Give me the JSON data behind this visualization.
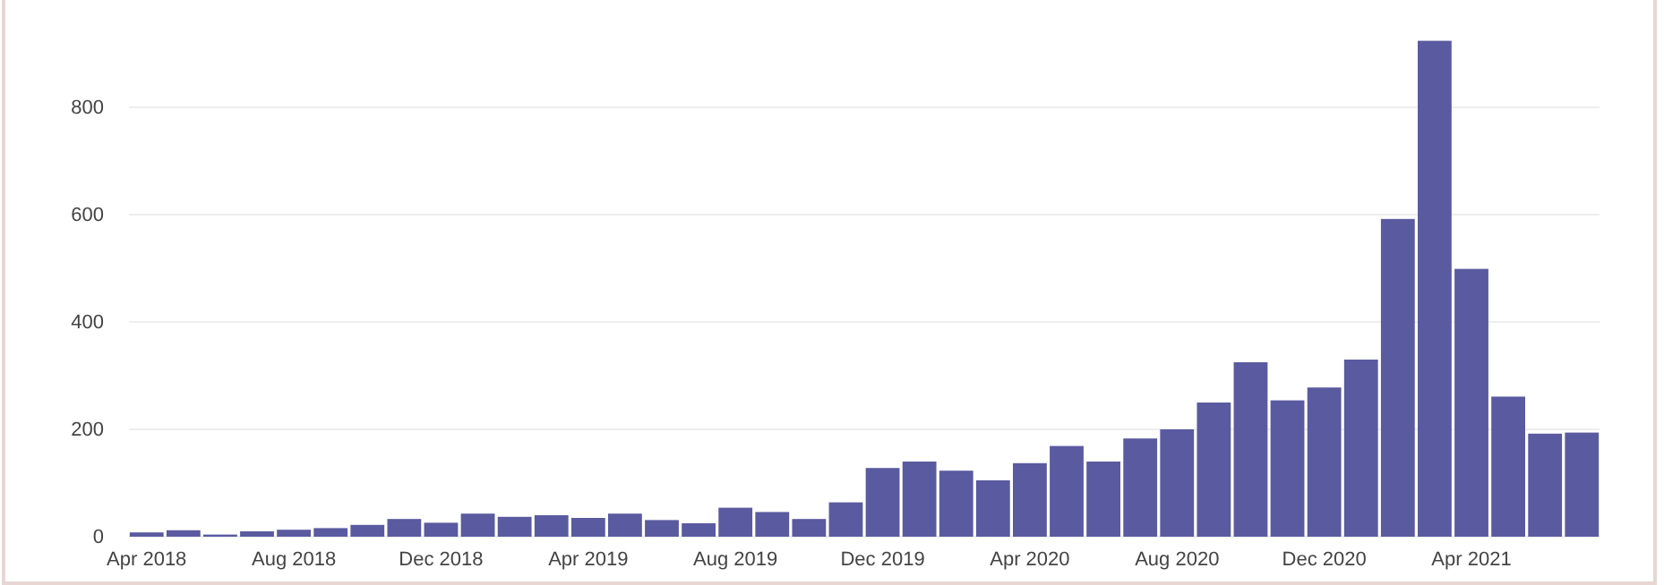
{
  "chart_data": {
    "type": "bar",
    "categories": [
      "Apr 2018",
      null,
      null,
      null,
      "Aug 2018",
      null,
      null,
      null,
      "Dec 2018",
      null,
      null,
      null,
      "Apr 2019",
      null,
      null,
      null,
      "Aug 2019",
      null,
      null,
      null,
      "Dec 2019",
      null,
      null,
      null,
      "Apr 2020",
      null,
      null,
      null,
      "Aug 2020",
      null,
      null,
      null,
      "Dec 2020",
      null,
      null,
      null,
      "Apr 2021",
      null,
      null,
      null
    ],
    "values": [
      8,
      12,
      4,
      10,
      13,
      16,
      22,
      33,
      26,
      43,
      37,
      40,
      35,
      43,
      31,
      25,
      54,
      46,
      33,
      64,
      128,
      140,
      123,
      105,
      137,
      169,
      140,
      183,
      200,
      250,
      325,
      254,
      278,
      330,
      592,
      924,
      499,
      261,
      192,
      194
    ],
    "color": "#5a5aa0",
    "ylim": [
      0,
      930
    ],
    "yticks": [
      0,
      200,
      400,
      600,
      800
    ],
    "grid": "y"
  }
}
